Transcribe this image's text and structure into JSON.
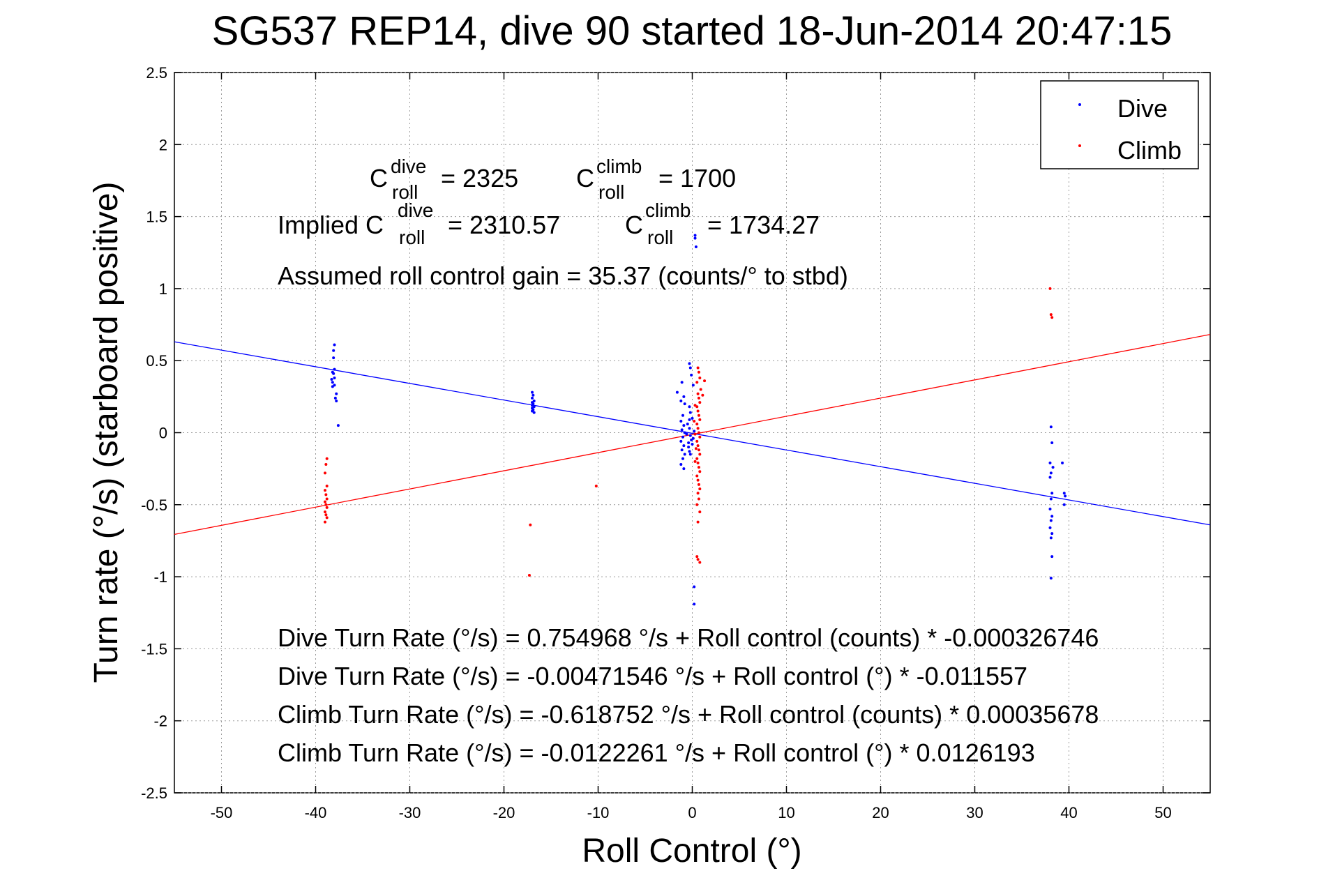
{
  "chart_data": {
    "type": "scatter",
    "title": "SG537 REP14, dive 90 started 18-Jun-2014 20:47:15",
    "xlabel": "Roll Control (°)",
    "ylabel": "Turn rate (°/s)  (starboard positive)",
    "xlim": [
      -55,
      55
    ],
    "ylim": [
      -2.5,
      2.5
    ],
    "xticks": [
      -50,
      -40,
      -30,
      -20,
      -10,
      0,
      10,
      20,
      30,
      40,
      50
    ],
    "yticks": [
      2.5,
      2,
      1.5,
      1,
      0.5,
      0,
      -0.5,
      -1,
      -1.5,
      -2,
      -2.5
    ],
    "xtick_labels": [
      "-50",
      "-40",
      "-30",
      "-20",
      "-10",
      "0",
      "10",
      "20",
      "30",
      "40",
      "50"
    ],
    "ytick_labels": [
      "2.5",
      "2",
      "1.5",
      "1",
      "0.5",
      "0",
      "-0.5",
      "-1",
      "-1.5",
      "-2",
      "-2.5"
    ],
    "grid": true,
    "legend": {
      "placement": "top-right",
      "entries": [
        "Dive",
        "Climb"
      ]
    },
    "colors": {
      "dive": "#0000ff",
      "climb": "#ff0000"
    },
    "series": [
      {
        "name": "Dive",
        "color": "#0000ff",
        "points": [
          [
            -38.0,
            0.61
          ],
          [
            -38.1,
            0.57
          ],
          [
            -38.1,
            0.52
          ],
          [
            -38.0,
            0.44
          ],
          [
            -38.2,
            0.42
          ],
          [
            -38.1,
            0.41
          ],
          [
            -38.0,
            0.38
          ],
          [
            -38.3,
            0.37
          ],
          [
            -38.2,
            0.35
          ],
          [
            -38.0,
            0.33
          ],
          [
            -38.2,
            0.32
          ],
          [
            -37.8,
            0.27
          ],
          [
            -37.9,
            0.24
          ],
          [
            -37.8,
            0.22
          ],
          [
            -37.6,
            0.05
          ],
          [
            -17.0,
            0.28
          ],
          [
            -16.9,
            0.26
          ],
          [
            -17.0,
            0.24
          ],
          [
            -16.8,
            0.22
          ],
          [
            -17.0,
            0.21
          ],
          [
            -16.9,
            0.2
          ],
          [
            -17.0,
            0.19
          ],
          [
            -16.8,
            0.18
          ],
          [
            -17.0,
            0.17
          ],
          [
            -16.9,
            0.16
          ],
          [
            -17.0,
            0.15
          ],
          [
            -16.8,
            0.14
          ],
          [
            -1.1,
            0.35
          ],
          [
            -1.6,
            0.28
          ],
          [
            -0.9,
            0.25
          ],
          [
            -1.2,
            0.22
          ],
          [
            -0.8,
            0.2
          ],
          [
            -0.3,
            0.48
          ],
          [
            -0.2,
            0.45
          ],
          [
            -0.1,
            0.4
          ],
          [
            0.1,
            0.33
          ],
          [
            -0.3,
            0.18
          ],
          [
            -0.2,
            0.14
          ],
          [
            0.0,
            0.1
          ],
          [
            -1.0,
            0.12
          ],
          [
            -1.2,
            0.08
          ],
          [
            -0.9,
            0.05
          ],
          [
            -1.1,
            0.02
          ],
          [
            -0.8,
            0.0
          ],
          [
            -1.0,
            -0.03
          ],
          [
            -1.2,
            -0.06
          ],
          [
            -0.9,
            -0.09
          ],
          [
            -1.1,
            -0.12
          ],
          [
            -0.8,
            -0.15
          ],
          [
            -1.0,
            -0.18
          ],
          [
            -1.2,
            -0.22
          ],
          [
            -0.9,
            -0.25
          ],
          [
            -0.3,
            0.03
          ],
          [
            -0.2,
            -0.02
          ],
          [
            -0.1,
            -0.05
          ],
          [
            0.0,
            -0.08
          ],
          [
            -0.4,
            -0.1
          ],
          [
            -0.3,
            -0.13
          ],
          [
            -0.2,
            -0.15
          ],
          [
            0.1,
            -0.04
          ],
          [
            0.2,
            0.01
          ],
          [
            -0.5,
            0.06
          ],
          [
            -0.6,
            -0.01
          ],
          [
            -0.4,
            -0.07
          ],
          [
            -0.3,
            0.09
          ],
          [
            0.3,
            1.37
          ],
          [
            0.3,
            1.35
          ],
          [
            0.4,
            1.29
          ],
          [
            0.2,
            -1.07
          ],
          [
            0.2,
            -1.19
          ],
          [
            38.1,
            0.04
          ],
          [
            38.2,
            -0.07
          ],
          [
            38.0,
            -0.21
          ],
          [
            38.3,
            -0.24
          ],
          [
            38.1,
            -0.28
          ],
          [
            38.0,
            -0.31
          ],
          [
            38.2,
            -0.42
          ],
          [
            38.1,
            -0.46
          ],
          [
            38.0,
            -0.53
          ],
          [
            38.2,
            -0.58
          ],
          [
            38.1,
            -0.61
          ],
          [
            38.0,
            -0.66
          ],
          [
            38.2,
            -0.7
          ],
          [
            38.1,
            -0.73
          ],
          [
            38.2,
            -0.86
          ],
          [
            38.1,
            -1.01
          ],
          [
            39.3,
            -0.21
          ],
          [
            39.5,
            -0.42
          ],
          [
            39.6,
            -0.44
          ],
          [
            39.5,
            -0.5
          ]
        ]
      },
      {
        "name": "Climb",
        "color": "#ff0000",
        "points": [
          [
            -38.8,
            -0.18
          ],
          [
            -38.9,
            -0.22
          ],
          [
            -39.0,
            -0.28
          ],
          [
            -38.8,
            -0.37
          ],
          [
            -39.0,
            -0.4
          ],
          [
            -38.9,
            -0.43
          ],
          [
            -38.8,
            -0.46
          ],
          [
            -39.0,
            -0.48
          ],
          [
            -38.9,
            -0.5
          ],
          [
            -38.8,
            -0.52
          ],
          [
            -39.0,
            -0.55
          ],
          [
            -38.9,
            -0.57
          ],
          [
            -38.8,
            -0.59
          ],
          [
            -39.0,
            -0.62
          ],
          [
            -17.2,
            -0.64
          ],
          [
            -17.3,
            -0.99
          ],
          [
            -10.2,
            -0.37
          ],
          [
            0.6,
            0.45
          ],
          [
            0.7,
            0.42
          ],
          [
            0.8,
            0.38
          ],
          [
            0.5,
            0.35
          ],
          [
            0.9,
            0.3
          ],
          [
            0.6,
            0.27
          ],
          [
            0.7,
            0.24
          ],
          [
            0.8,
            0.21
          ],
          [
            0.5,
            0.18
          ],
          [
            0.6,
            0.15
          ],
          [
            0.7,
            0.12
          ],
          [
            0.8,
            0.09
          ],
          [
            0.5,
            0.06
          ],
          [
            0.6,
            0.03
          ],
          [
            0.7,
            0.0
          ],
          [
            0.8,
            -0.03
          ],
          [
            0.5,
            -0.06
          ],
          [
            0.6,
            -0.09
          ],
          [
            0.7,
            -0.12
          ],
          [
            0.8,
            -0.15
          ],
          [
            0.5,
            -0.18
          ],
          [
            0.6,
            -0.21
          ],
          [
            0.7,
            -0.24
          ],
          [
            0.8,
            -0.27
          ],
          [
            0.5,
            -0.3
          ],
          [
            0.6,
            -0.33
          ],
          [
            0.7,
            -0.36
          ],
          [
            0.8,
            -0.39
          ],
          [
            0.6,
            -0.42
          ],
          [
            0.7,
            -0.46
          ],
          [
            0.5,
            -0.5
          ],
          [
            0.8,
            -0.55
          ],
          [
            0.6,
            -0.62
          ],
          [
            1.3,
            0.36
          ],
          [
            1.1,
            0.26
          ],
          [
            0.3,
            0.19
          ],
          [
            0.2,
            0.08
          ],
          [
            0.3,
            -0.01
          ],
          [
            0.4,
            -0.11
          ],
          [
            0.3,
            -0.2
          ],
          [
            0.5,
            -0.86
          ],
          [
            0.8,
            -0.9
          ],
          [
            0.6,
            -0.88
          ],
          [
            38.0,
            1.0
          ],
          [
            38.1,
            0.82
          ],
          [
            38.2,
            0.8
          ]
        ]
      }
    ],
    "fit_lines": [
      {
        "series": "Dive",
        "color": "#0000ff",
        "intercept": -0.00471546,
        "slope": -0.011557
      },
      {
        "series": "Climb",
        "color": "#ff0000",
        "intercept": -0.0122261,
        "slope": 0.0126193
      }
    ],
    "annotations": {
      "c_roll_dive_label": "C",
      "c_roll_dive_sup": "dive",
      "c_roll_dive_sub": "roll",
      "c_roll_dive_value": "= 2325",
      "c_roll_climb_label": "C",
      "c_roll_climb_sup": "climb",
      "c_roll_climb_sub": "roll",
      "c_roll_climb_value": "= 1700",
      "implied_prefix": "Implied C",
      "implied_dive_sup": "dive",
      "implied_dive_sub": "roll",
      "implied_dive_value": "= 2310.57",
      "implied_climb_label": "C",
      "implied_climb_sup": "climb",
      "implied_climb_sub": "roll",
      "implied_climb_value": "= 1734.27",
      "gain": "Assumed roll control gain = 35.37 (counts/° to stbd)",
      "eq1": "Dive Turn Rate (°/s) = 0.754968 °/s + Roll control (counts) * -0.000326746",
      "eq2": "Dive Turn Rate (°/s) = -0.00471546 °/s + Roll control (°) * -0.011557",
      "eq3": "Climb Turn Rate (°/s) = -0.618752 °/s + Roll control (counts) * 0.00035678",
      "eq4": "Climb Turn Rate (°/s) = -0.0122261 °/s + Roll control (°) * 0.0126193"
    }
  }
}
